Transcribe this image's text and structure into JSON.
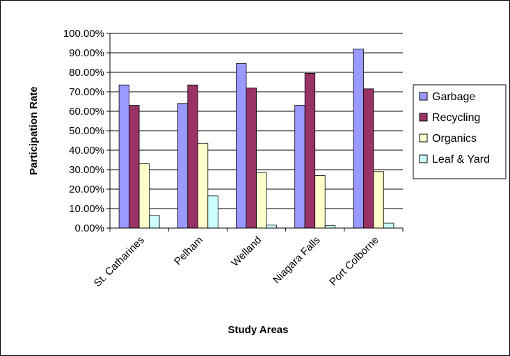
{
  "chart_data": {
    "type": "bar",
    "title": "",
    "xlabel": "Study Areas",
    "ylabel": "Participation Rate",
    "categories": [
      "St. Catharines",
      "Pelham",
      "Welland",
      "Niagara Falls",
      "Port Colborne"
    ],
    "series": [
      {
        "name": "Garbage",
        "color": "#9999ff",
        "values": [
          0.735,
          0.64,
          0.845,
          0.63,
          0.92
        ]
      },
      {
        "name": "Recycling",
        "color": "#993366",
        "values": [
          0.63,
          0.735,
          0.72,
          0.795,
          0.715
        ]
      },
      {
        "name": "Organics",
        "color": "#ffffcc",
        "values": [
          0.33,
          0.435,
          0.285,
          0.27,
          0.29
        ]
      },
      {
        "name": "Leaf & Yard",
        "color": "#ccffff",
        "values": [
          0.065,
          0.165,
          0.015,
          0.012,
          0.025
        ]
      }
    ],
    "ylim": [
      0,
      1.0
    ],
    "ytick_labels": [
      "0.00%",
      "10.00%",
      "20.00%",
      "30.00%",
      "40.00%",
      "50.00%",
      "60.00%",
      "70.00%",
      "80.00%",
      "90.00%",
      "100.00%"
    ],
    "grid": true,
    "legend_position": "right"
  }
}
